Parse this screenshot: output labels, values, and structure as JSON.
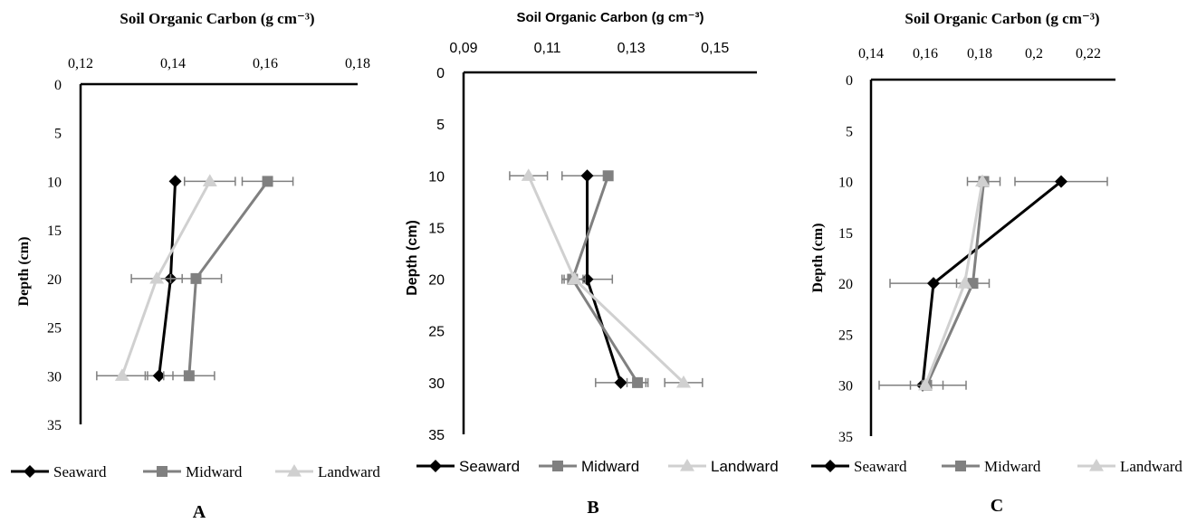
{
  "chart_data": [
    {
      "type": "line",
      "panel_label": "A",
      "title": "Soil Organic Carbon (g cm⁻³)",
      "xlabel": "",
      "ylabel": "Depth (cm)",
      "xlim": [
        0.12,
        0.18
      ],
      "ylim": [
        0,
        35
      ],
      "y_inverted": true,
      "x_axis_position": "top",
      "x_ticks": [
        0.12,
        0.14,
        0.16,
        0.18
      ],
      "x_tick_labels": [
        "0,12",
        "0,14",
        "0,16",
        "0,18"
      ],
      "y_ticks": [
        0,
        5,
        10,
        15,
        20,
        25,
        30,
        35
      ],
      "y_tick_labels": [
        "0",
        "5",
        "10",
        "15",
        "20",
        "25",
        "30",
        "35"
      ],
      "legend_position": "bottom",
      "series": [
        {
          "name": "Seaward",
          "marker": "diamond",
          "color": "#000000",
          "depth": [
            10,
            20,
            30
          ],
          "values": [
            0.1405,
            0.1395,
            0.137
          ],
          "error": [
            0,
            0,
            0.003
          ]
        },
        {
          "name": "Midward",
          "marker": "square",
          "color": "#808080",
          "depth": [
            10,
            20,
            30
          ],
          "values": [
            0.1605,
            0.145,
            0.1435
          ],
          "error": [
            0.0055,
            0.0055,
            0.0055
          ]
        },
        {
          "name": "Landward",
          "marker": "triangle",
          "color": "#d0d0d0",
          "depth": [
            10,
            20,
            30
          ],
          "values": [
            0.148,
            0.1365,
            0.129
          ],
          "error": [
            0.0055,
            0.0055,
            0.0055
          ]
        }
      ]
    },
    {
      "type": "line",
      "panel_label": "B",
      "title": "Soil Organic Carbon (g cm⁻³)",
      "xlabel": "",
      "ylabel": "Depth (cm)",
      "xlim": [
        0.09,
        0.16
      ],
      "ylim": [
        0,
        35
      ],
      "y_inverted": true,
      "x_axis_position": "top",
      "x_ticks": [
        0.09,
        0.11,
        0.13,
        0.15
      ],
      "x_tick_labels": [
        "0,09",
        "0,11",
        "0,13",
        "0,15"
      ],
      "y_ticks": [
        0,
        5,
        10,
        15,
        20,
        25,
        30,
        35
      ],
      "y_tick_labels": [
        "0",
        "5",
        "10",
        "15",
        "20",
        "25",
        "30",
        "35"
      ],
      "legend_position": "bottom",
      "series": [
        {
          "name": "Seaward",
          "marker": "diamond",
          "color": "#000000",
          "depth": [
            10,
            20,
            30
          ],
          "values": [
            0.1195,
            0.1195,
            0.1275
          ],
          "error": [
            0.006,
            0.006,
            0.006
          ]
        },
        {
          "name": "Midward",
          "marker": "square",
          "color": "#808080",
          "depth": [
            10,
            20,
            30
          ],
          "values": [
            0.1245,
            0.116,
            0.1315
          ],
          "error": [
            0,
            0.0025,
            0.0025
          ]
        },
        {
          "name": "Landward",
          "marker": "triangle",
          "color": "#d0d0d0",
          "depth": [
            10,
            20,
            30
          ],
          "values": [
            0.1055,
            0.1165,
            0.1425
          ],
          "error": [
            0.0045,
            0.0025,
            0.0045
          ]
        }
      ]
    },
    {
      "type": "line",
      "panel_label": "C",
      "title": "Soil Organic Carbon (g cm⁻³)",
      "xlabel": "",
      "ylabel": "Depth (cm)",
      "xlim": [
        0.14,
        0.23
      ],
      "ylim": [
        0,
        35
      ],
      "y_inverted": true,
      "x_axis_position": "top",
      "x_ticks": [
        0.14,
        0.16,
        0.18,
        0.2,
        0.22
      ],
      "x_tick_labels": [
        "0,14",
        "0,16",
        "0,18",
        "0,2",
        "0,22"
      ],
      "y_ticks": [
        0,
        5,
        10,
        15,
        20,
        25,
        30,
        35
      ],
      "y_tick_labels": [
        "0",
        "5",
        "10",
        "15",
        "20",
        "25",
        "30",
        "35"
      ],
      "legend_position": "bottom",
      "series": [
        {
          "name": "Seaward",
          "marker": "diamond",
          "color": "#000000",
          "depth": [
            10,
            20,
            30
          ],
          "values": [
            0.21,
            0.163,
            0.159
          ],
          "error": [
            0.017,
            0.016,
            0.016
          ]
        },
        {
          "name": "Midward",
          "marker": "square",
          "color": "#808080",
          "depth": [
            10,
            20,
            30
          ],
          "values": [
            0.1815,
            0.1775,
            0.1605
          ],
          "error": [
            0.006,
            0.006,
            0.006
          ]
        },
        {
          "name": "Landward",
          "marker": "triangle",
          "color": "#d0d0d0",
          "depth": [
            10,
            20,
            30
          ],
          "values": [
            0.181,
            0.1745,
            0.16
          ],
          "error": [
            0,
            0,
            0
          ]
        }
      ]
    }
  ]
}
